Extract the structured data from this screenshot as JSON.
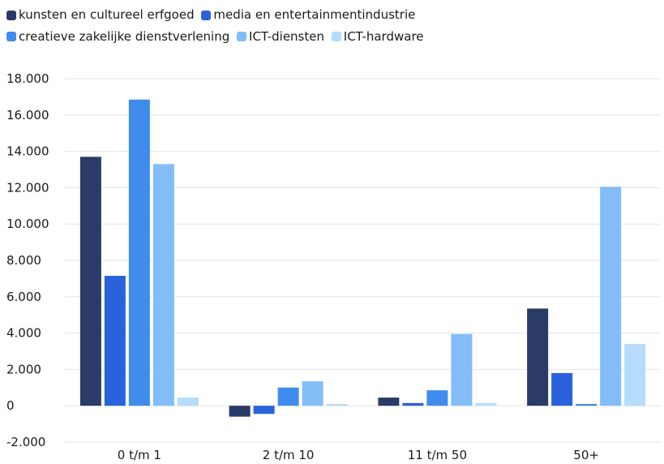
{
  "chart_data": {
    "type": "bar",
    "title": "",
    "xlabel": "",
    "ylabel": "",
    "categories": [
      "0 t/m 1",
      "2 t/m 10",
      "11 t/m 50",
      "50+"
    ],
    "ylim": [
      -2000,
      18000
    ],
    "yticks": [
      -2000,
      0,
      2000,
      4000,
      6000,
      8000,
      10000,
      12000,
      14000,
      16000,
      18000
    ],
    "ytick_labels": [
      "-2.000",
      "0",
      "2.000",
      "4.000",
      "6.000",
      "8.000",
      "10.000",
      "12.000",
      "14.000",
      "16.000",
      "18.000"
    ],
    "grid": true,
    "legend_position": "top-left",
    "series": [
      {
        "name": "kunsten en cultureel erfgoed",
        "color": "#293b66",
        "values": [
          13700,
          -600,
          450,
          5350
        ]
      },
      {
        "name": "media en entertainmentindustrie",
        "color": "#2a62dc",
        "values": [
          7150,
          -450,
          150,
          1800
        ]
      },
      {
        "name": "creatieve zakelijke dienstverlening",
        "color": "#3f8ced",
        "values": [
          16850,
          1000,
          850,
          100
        ]
      },
      {
        "name": "ICT-diensten",
        "color": "#82bdf7",
        "values": [
          13300,
          1350,
          3950,
          12050
        ]
      },
      {
        "name": "ICT-hardware",
        "color": "#b6dcfb",
        "values": [
          450,
          100,
          150,
          3400
        ]
      }
    ]
  }
}
